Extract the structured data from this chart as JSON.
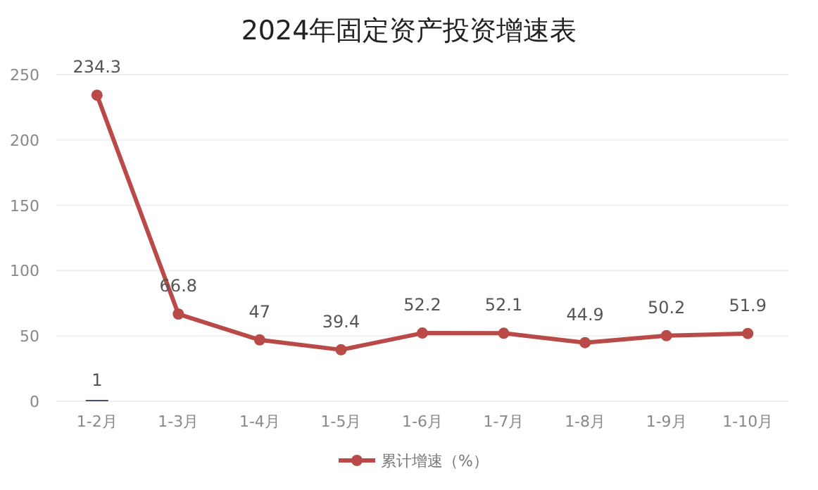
{
  "chart_data": {
    "type": "line",
    "title": "2024年固定资产投资增速表",
    "categories": [
      "1-2月",
      "1-3月",
      "1-4月",
      "1-5月",
      "1-6月",
      "1-7月",
      "1-8月",
      "1-9月",
      "1-10月"
    ],
    "series": [
      {
        "name": "累计增速（%）",
        "color": "#b94a48",
        "values": [
          234.3,
          66.8,
          47,
          39.4,
          52.2,
          52.1,
          44.9,
          50.2,
          51.9
        ]
      },
      {
        "type": "bar",
        "color": "#44546a",
        "values": [
          1,
          null,
          null,
          null,
          null,
          null,
          null,
          null,
          null
        ]
      }
    ],
    "ylim": [
      0,
      250
    ],
    "yticks": [
      0,
      50,
      100,
      150,
      200,
      250
    ],
    "grid": "y",
    "legend": "bottom",
    "data_labels": true,
    "marker": "circle",
    "line_style": "solid"
  }
}
